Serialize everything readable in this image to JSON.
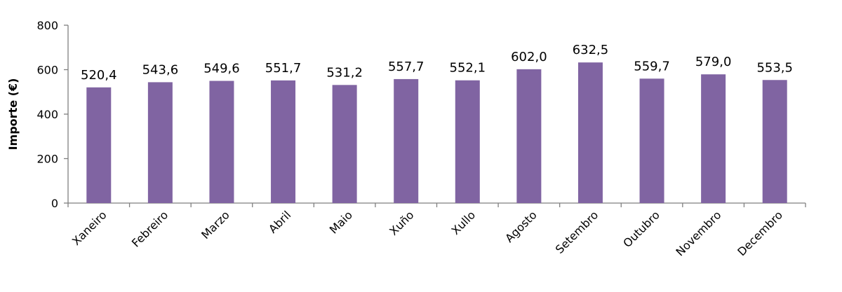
{
  "chart_data": {
    "type": "bar",
    "title": "",
    "xlabel": "",
    "ylabel": "Importe (€)",
    "ylim": [
      0,
      800
    ],
    "yticks": [
      0,
      200,
      400,
      600,
      800
    ],
    "grid": false,
    "legend": "none",
    "bar_color": "#8064a2",
    "categories": [
      "Xaneiro",
      "Febreiro",
      "Marzo",
      "Abril",
      "Maio",
      "Xuño",
      "Xullo",
      "Agosto",
      "Setembro",
      "Outubro",
      "Novembro",
      "Decembro"
    ],
    "values": [
      520.4,
      543.6,
      549.6,
      551.7,
      531.2,
      557.7,
      552.1,
      602.0,
      632.5,
      559.7,
      579.0,
      553.5
    ],
    "value_labels": [
      "520,4",
      "543,6",
      "549,6",
      "551,7",
      "531,2",
      "557,7",
      "552,1",
      "602,0",
      "632,5",
      "559,7",
      "579,0",
      "553,5"
    ]
  }
}
